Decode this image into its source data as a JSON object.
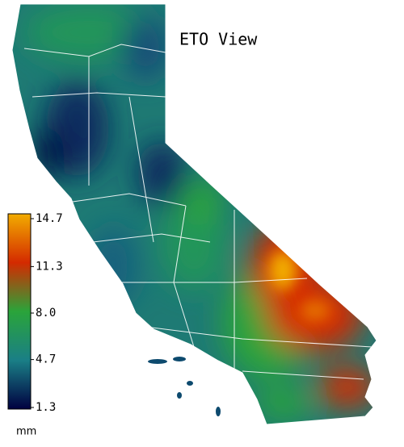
{
  "map": {
    "title": "ETO View",
    "legend": {
      "unit": "mm",
      "ticks": [
        14.7,
        11.3,
        {
          "value": 8,
          "label": "8.0"
        },
        4.7,
        1.3
      ],
      "colors": [
        "#f2ac00",
        "#d42a00",
        "#2aa43a",
        "#1a7f86",
        "#000040"
      ]
    }
  }
}
